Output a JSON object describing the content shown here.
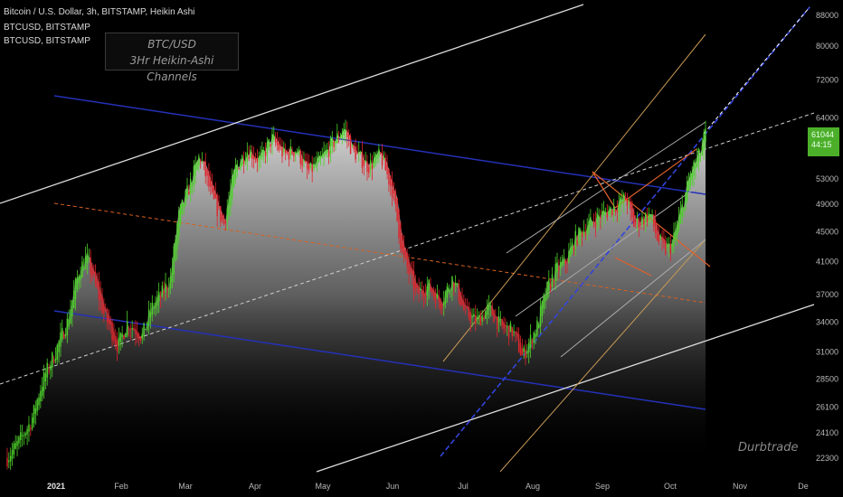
{
  "header": {
    "main_title": "Bitcoin / U.S. Dollar, 3h, BITSTAMP, Heikin Ashi",
    "sub1": "BTCUSD, BITSTAMP",
    "sub2": "BTCUSD, BITSTAMP"
  },
  "text_box": {
    "line1": "BTC/USD",
    "line2": "3Hr Heikin-Ashi Channels"
  },
  "watermark": "Durbtrade",
  "price_tag": {
    "price": "61044",
    "countdown": "44:15"
  },
  "colors": {
    "up": "#4dd02a",
    "down": "#e0232b",
    "channel_blue": "#2431b8",
    "midline_orange": "#d86020",
    "price_tag": "#4caf2a"
  },
  "chart_data": {
    "type": "candlestick",
    "chart_style": "Heikin Ashi",
    "symbol": "BTCUSD",
    "exchange": "BITSTAMP",
    "timeframe": "3h",
    "y_scale": "log",
    "ylim": [
      21800,
      92000
    ],
    "y_ticks": [
      22300,
      24100,
      26100,
      28500,
      31000,
      34000,
      37000,
      41000,
      45000,
      49000,
      53000,
      58000,
      64000,
      72000,
      80000,
      88000
    ],
    "x_labels": [
      "2021",
      "Feb",
      "Mar",
      "Apr",
      "May",
      "Jun",
      "Jul",
      "Aug",
      "Sep",
      "Oct",
      "Nov",
      "De"
    ],
    "last_price": 61044,
    "price_path_approx": [
      {
        "t": 0.0,
        "price": 22300
      },
      {
        "t": 0.5,
        "price": 23500
      },
      {
        "t": 1.0,
        "price": 25000
      },
      {
        "t": 1.5,
        "price": 28500
      },
      {
        "t": 2.0,
        "price": 31000
      },
      {
        "t": 2.5,
        "price": 34000
      },
      {
        "t": 3.0,
        "price": 40000
      },
      {
        "t": 3.3,
        "price": 41500
      },
      {
        "t": 4.0,
        "price": 35000
      },
      {
        "t": 4.6,
        "price": 31500
      },
      {
        "t": 5.0,
        "price": 34000
      },
      {
        "t": 5.6,
        "price": 32500
      },
      {
        "t": 6.0,
        "price": 35500
      },
      {
        "t": 6.4,
        "price": 37000
      },
      {
        "t": 6.8,
        "price": 39000
      },
      {
        "t": 7.1,
        "price": 47000
      },
      {
        "t": 7.6,
        "price": 52000
      },
      {
        "t": 8.0,
        "price": 57000
      },
      {
        "t": 8.5,
        "price": 50000
      },
      {
        "t": 9.0,
        "price": 46000
      },
      {
        "t": 9.5,
        "price": 55000
      },
      {
        "t": 10.0,
        "price": 58000
      },
      {
        "t": 10.5,
        "price": 56000
      },
      {
        "t": 11.0,
        "price": 60000
      },
      {
        "t": 11.5,
        "price": 57000
      },
      {
        "t": 12.0,
        "price": 58000
      },
      {
        "t": 12.5,
        "price": 54000
      },
      {
        "t": 13.0,
        "price": 56000
      },
      {
        "t": 13.5,
        "price": 59000
      },
      {
        "t": 14.0,
        "price": 62000
      },
      {
        "t": 14.3,
        "price": 58000
      },
      {
        "t": 15.0,
        "price": 55000
      },
      {
        "t": 15.5,
        "price": 57000
      },
      {
        "t": 16.0,
        "price": 51000
      },
      {
        "t": 16.4,
        "price": 42000
      },
      {
        "t": 17.0,
        "price": 37000
      },
      {
        "t": 17.5,
        "price": 38000
      },
      {
        "t": 18.0,
        "price": 36000
      },
      {
        "t": 18.5,
        "price": 39000
      },
      {
        "t": 19.0,
        "price": 35000
      },
      {
        "t": 19.5,
        "price": 34000
      },
      {
        "t": 20.0,
        "price": 35500
      },
      {
        "t": 20.5,
        "price": 33500
      },
      {
        "t": 21.0,
        "price": 33000
      },
      {
        "t": 21.4,
        "price": 30500
      },
      {
        "t": 21.6,
        "price": 31500
      },
      {
        "t": 22.0,
        "price": 33500
      },
      {
        "t": 22.4,
        "price": 37500
      },
      {
        "t": 22.8,
        "price": 40000
      },
      {
        "t": 23.2,
        "price": 41000
      },
      {
        "t": 23.6,
        "price": 44000
      },
      {
        "t": 24.0,
        "price": 45500
      },
      {
        "t": 24.5,
        "price": 47000
      },
      {
        "t": 25.0,
        "price": 48000
      },
      {
        "t": 25.4,
        "price": 49000
      },
      {
        "t": 25.7,
        "price": 50000
      },
      {
        "t": 26.0,
        "price": 46000
      },
      {
        "t": 26.3,
        "price": 46500
      },
      {
        "t": 26.7,
        "price": 47500
      },
      {
        "t": 27.0,
        "price": 44000
      },
      {
        "t": 27.3,
        "price": 42500
      },
      {
        "t": 27.6,
        "price": 43000
      },
      {
        "t": 28.0,
        "price": 48000
      },
      {
        "t": 28.4,
        "price": 54000
      },
      {
        "t": 28.8,
        "price": 57500
      },
      {
        "t": 29.0,
        "price": 61044
      }
    ]
  }
}
